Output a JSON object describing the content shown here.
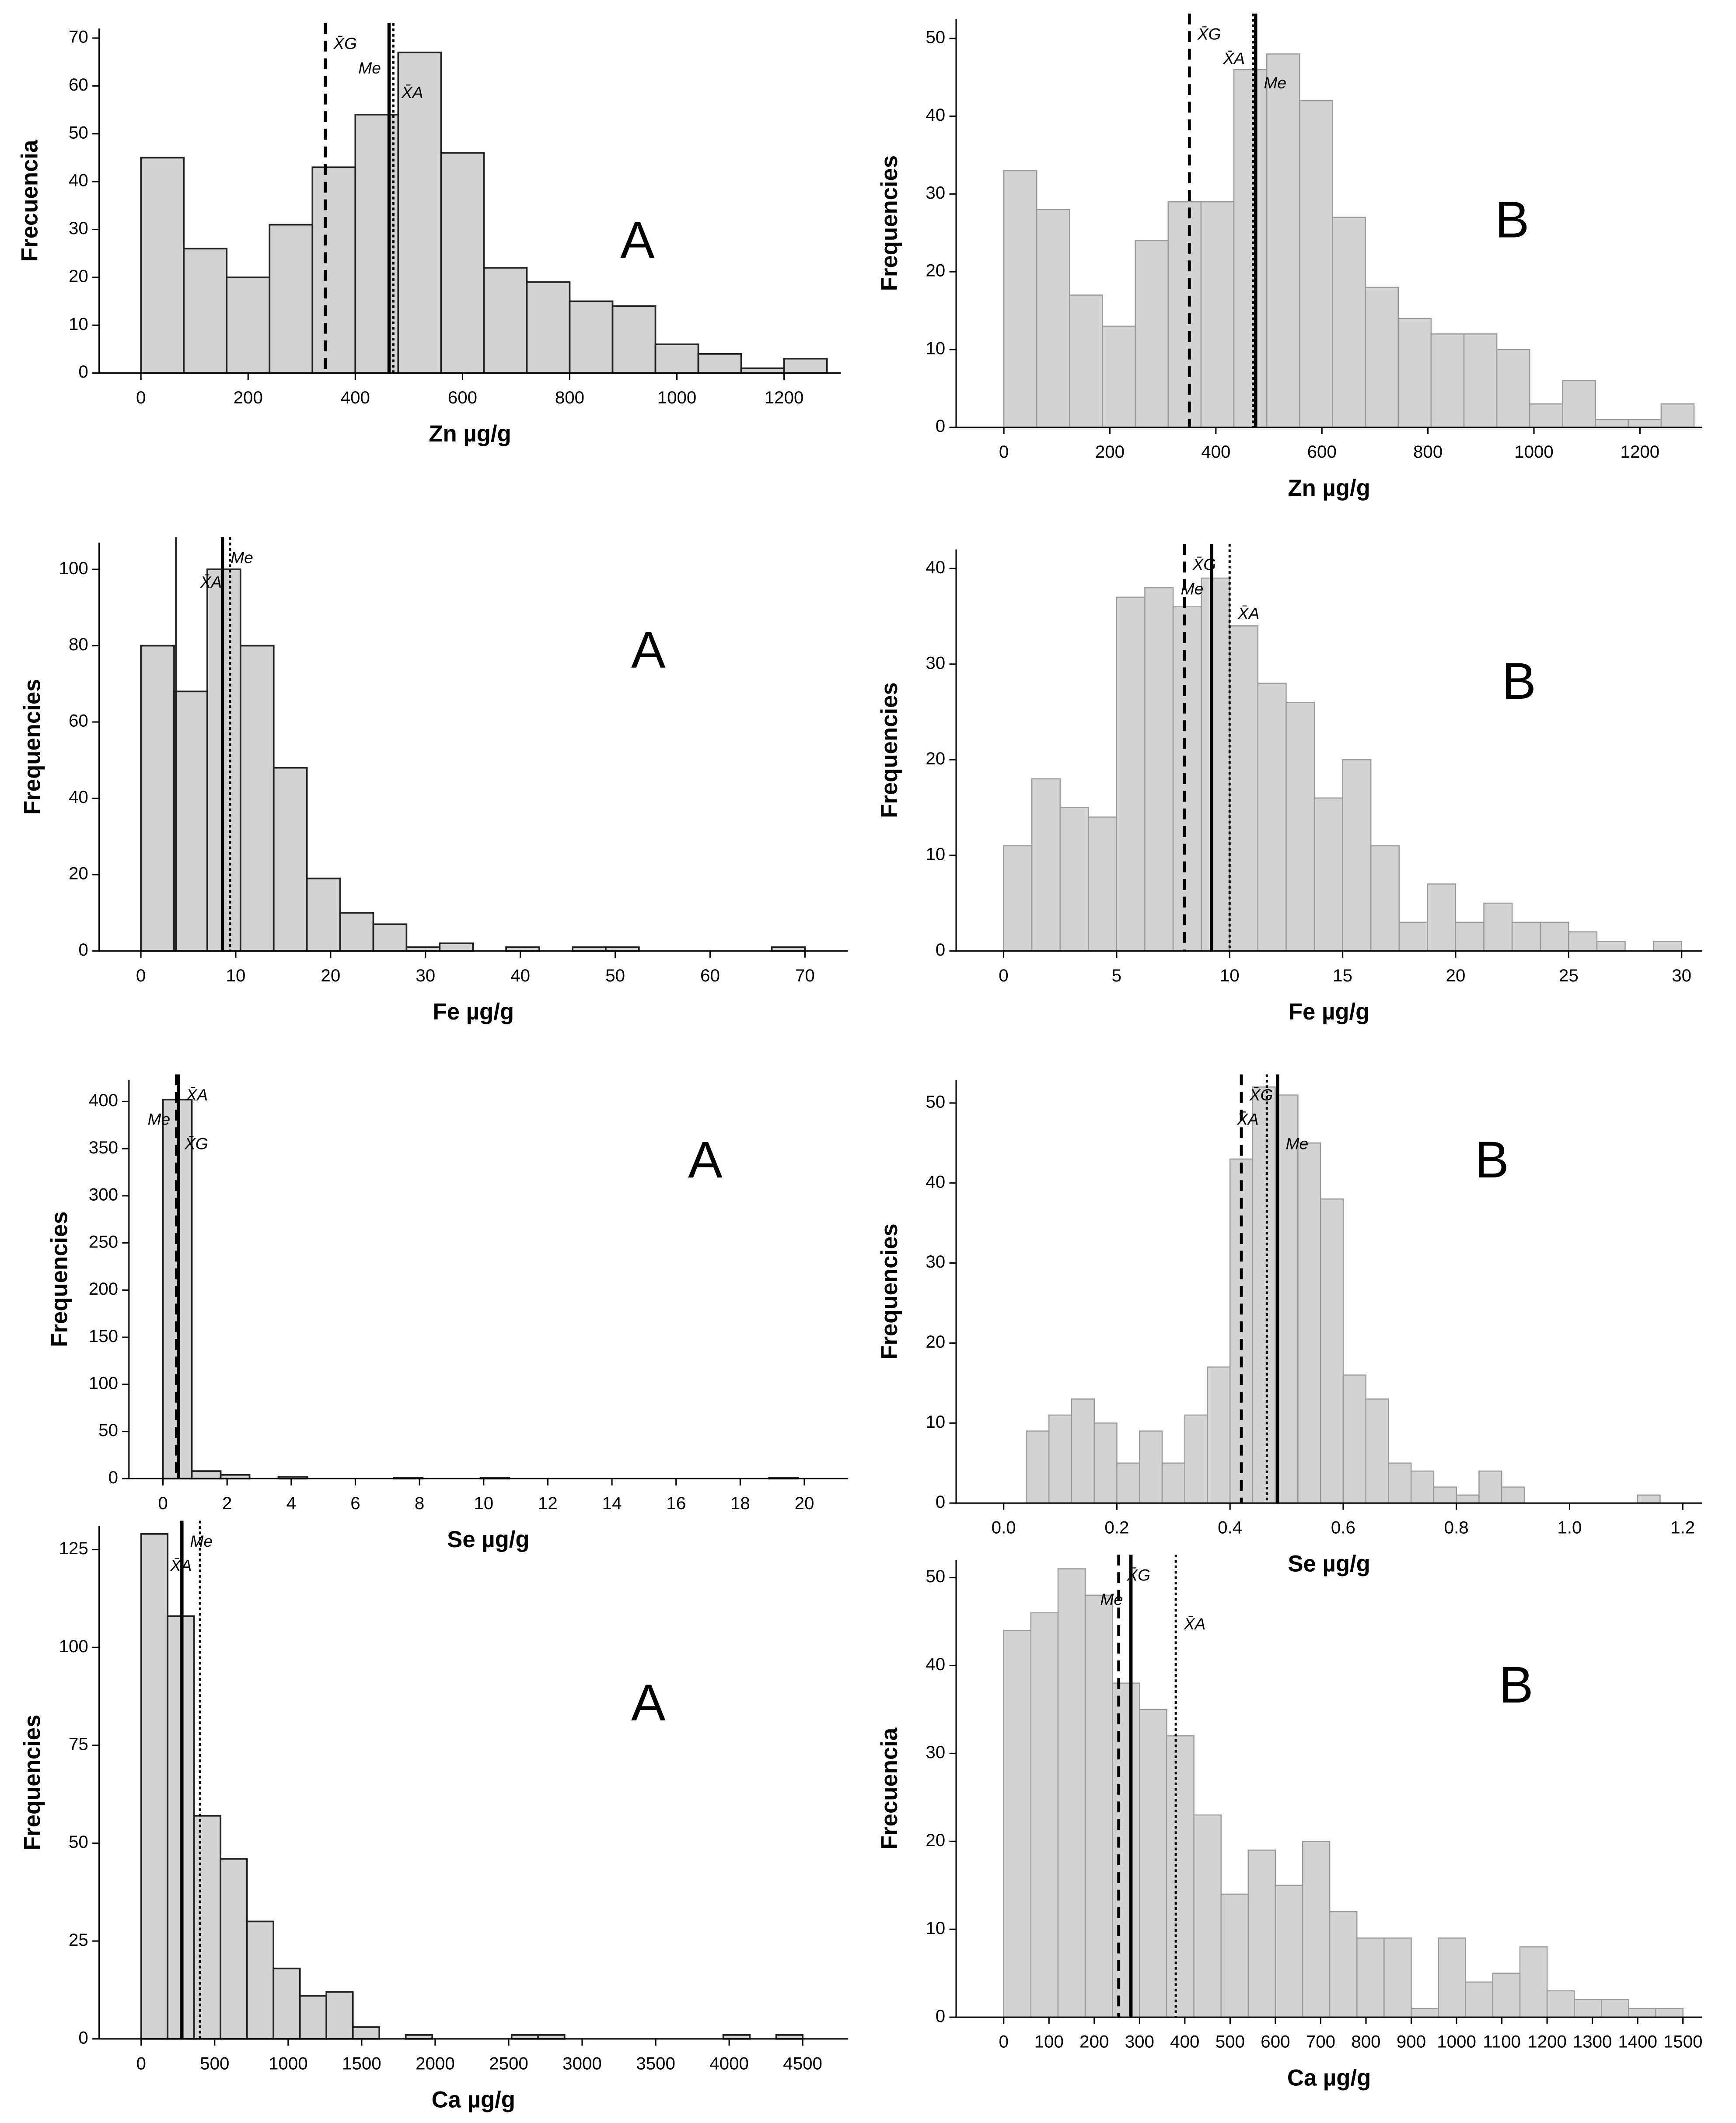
{
  "chart_data": [
    {
      "type": "histogram",
      "panel": "A",
      "xlabel": "Zn µg/g",
      "ylabel": "Frecuencia",
      "bins": [
        0,
        80,
        160,
        240,
        320,
        400,
        480,
        560,
        640,
        720,
        800,
        880,
        960,
        1040,
        1120,
        1200,
        1280
      ],
      "counts": [
        45,
        26,
        20,
        31,
        43,
        54,
        67,
        46,
        22,
        19,
        15,
        14,
        6,
        4,
        1,
        3
      ],
      "xlim": [
        -78,
        1306
      ],
      "ylim": [
        0,
        72
      ],
      "xticks": [
        0,
        200,
        400,
        600,
        800,
        1000,
        1200
      ],
      "yticks": [
        0,
        10,
        20,
        30,
        40,
        50,
        60,
        70
      ],
      "color": "#d3d3d3",
      "reference_lines": [
        {
          "label": "X̄G",
          "value": 344,
          "style": "dashed"
        },
        {
          "label": "Me",
          "value": 463,
          "style": "solid"
        },
        {
          "label": "X̄A",
          "value": 471,
          "style": "dotted"
        }
      ]
    },
    {
      "type": "histogram",
      "panel": "B",
      "xlabel": "Zn µg/g",
      "ylabel": "Frequencies",
      "bins": [
        0,
        62,
        124,
        186,
        248,
        310,
        372,
        434,
        496,
        558,
        620,
        682,
        744,
        806,
        868,
        930,
        992,
        1054,
        1116,
        1178,
        1240,
        1302
      ],
      "counts": [
        33,
        28,
        17,
        13,
        24,
        29,
        29,
        46,
        48,
        42,
        27,
        18,
        14,
        12,
        12,
        10,
        3,
        6,
        1,
        1,
        3
      ],
      "xlim": [
        -90,
        1317
      ],
      "ylim": [
        0,
        52.5
      ],
      "xticks": [
        0,
        200,
        400,
        600,
        800,
        1000,
        1200
      ],
      "yticks": [
        0,
        10,
        20,
        30,
        40,
        50
      ],
      "color": "#d3d3d3",
      "reference_lines": [
        {
          "label": "X̄G",
          "value": 350,
          "style": "dashed"
        },
        {
          "label": "X̄A",
          "value": 470,
          "style": "dotted"
        },
        {
          "label": "Me",
          "value": 475,
          "style": "solid"
        }
      ]
    },
    {
      "type": "histogram",
      "panel": "A",
      "xlabel": "Fe µg/g",
      "ylabel": "Frequencies",
      "bins": [
        0,
        3.5,
        7,
        10.5,
        14,
        17.5,
        21,
        24.5,
        28,
        31.5,
        35,
        38.5,
        42,
        45.5,
        49,
        52.5,
        56,
        59.5,
        63,
        66.5,
        70
      ],
      "counts": [
        80,
        68,
        100,
        80,
        48,
        19,
        10,
        7,
        1,
        2,
        0,
        1,
        0,
        1,
        1,
        0,
        0,
        0,
        0,
        1
      ],
      "xlim": [
        -4.4,
        74.5
      ],
      "ylim": [
        0,
        107
      ],
      "xticks": [
        0,
        10,
        20,
        30,
        40,
        50,
        60,
        70
      ],
      "yticks": [
        0,
        20,
        40,
        60,
        80,
        100
      ],
      "color": "#d3d3d3",
      "reference_lines": [
        {
          "value": 3.7,
          "style": "thin"
        },
        {
          "label": "Me",
          "value": 8.6,
          "style": "solid"
        },
        {
          "label": "X̄A",
          "value": 9.4,
          "style": "dotted"
        }
      ]
    },
    {
      "type": "histogram",
      "panel": "B",
      "xlabel": "Fe µg/g",
      "ylabel": "Frequencies",
      "bins": [
        0,
        1.25,
        2.5,
        3.75,
        5,
        6.25,
        7.5,
        8.75,
        10,
        11.25,
        12.5,
        13.75,
        15,
        16.25,
        17.5,
        18.75,
        20,
        21.25,
        22.5,
        23.75,
        25,
        26.25,
        27.5,
        28.75,
        30
      ],
      "counts": [
        11,
        18,
        15,
        14,
        37,
        38,
        36,
        39,
        34,
        28,
        26,
        16,
        20,
        11,
        3,
        7,
        3,
        5,
        3,
        3,
        2,
        1,
        0,
        1
      ],
      "xlim": [
        -2.1,
        30.9
      ],
      "ylim": [
        0,
        42
      ],
      "xticks": [
        0,
        5,
        10,
        15,
        20,
        25,
        30
      ],
      "yticks": [
        0,
        10,
        20,
        30,
        40
      ],
      "color": "#d3d3d3",
      "reference_lines": [
        {
          "label": "X̄G",
          "value": 8.0,
          "style": "dashed"
        },
        {
          "label": "Me",
          "value": 9.2,
          "style": "solid"
        },
        {
          "label": "X̄A",
          "value": 10.0,
          "style": "dotted"
        }
      ]
    },
    {
      "type": "histogram",
      "panel": "A",
      "xlabel": "Se µg/g",
      "ylabel": "Frequencies",
      "bins": [
        0,
        0.9,
        1.8,
        2.7,
        3.6,
        4.5,
        5.4,
        6.3,
        7.2,
        8.1,
        9,
        9.9,
        10.8,
        11.7,
        12.6,
        13.5,
        14.4,
        15.3,
        16.2,
        17.1,
        18,
        18.9,
        19.8,
        20.7
      ],
      "counts": [
        402,
        8,
        4,
        0,
        2,
        0,
        0,
        0,
        1,
        0,
        0,
        1,
        0,
        0,
        0,
        0,
        0,
        0,
        0,
        0,
        0,
        1,
        0
      ],
      "xlim": [
        -1.06,
        21.35
      ],
      "ylim": [
        0,
        423
      ],
      "xticks": [
        0,
        2,
        4,
        6,
        8,
        10,
        12,
        14,
        16,
        18,
        20
      ],
      "yticks": [
        0,
        50,
        100,
        150,
        200,
        250,
        300,
        350,
        400
      ],
      "color": "#d3d3d3",
      "reference_lines": [
        {
          "label": "X̄A",
          "value": 0.47,
          "style": "dashed"
        },
        {
          "label": "Me",
          "value": 0.48,
          "style": "solid"
        },
        {
          "label": "X̄G",
          "value": 0.42,
          "style": "dashed"
        }
      ]
    },
    {
      "type": "histogram",
      "panel": "B",
      "xlabel": "Se µg/g",
      "ylabel": "Frequencies",
      "bins": [
        0.04,
        0.08,
        0.12,
        0.16,
        0.2,
        0.24,
        0.28,
        0.32,
        0.36,
        0.4,
        0.44,
        0.48,
        0.52,
        0.56,
        0.6,
        0.64,
        0.68,
        0.72,
        0.76,
        0.8,
        0.84,
        0.88,
        0.92,
        0.96,
        1,
        1.04,
        1.08,
        1.12,
        1.16
      ],
      "counts": [
        9,
        11,
        13,
        10,
        5,
        9,
        5,
        11,
        17,
        43,
        52,
        51,
        45,
        38,
        16,
        13,
        5,
        4,
        2,
        1,
        4,
        2,
        0,
        0,
        0,
        0,
        0,
        1
      ],
      "xlim": [
        -0.084,
        1.234
      ],
      "ylim": [
        0,
        52.9
      ],
      "xticks": [
        {
          "value": 0,
          "label": "0.0"
        },
        0.2,
        0.4,
        0.6,
        0.8,
        {
          "value": 1,
          "label": "1.0"
        },
        1.2
      ],
      "yticks": [
        0,
        10,
        20,
        30,
        40,
        50
      ],
      "color": "#d3d3d3",
      "reference_lines": [
        {
          "label": "X̄G",
          "value": 0.42,
          "style": "dashed"
        },
        {
          "label": "X̄A",
          "value": 0.465,
          "style": "dotted"
        },
        {
          "label": "Me",
          "value": 0.484,
          "style": "solid"
        }
      ]
    },
    {
      "type": "histogram",
      "panel": "A",
      "xlabel": "Ca µg/g",
      "ylabel": "Frequencies",
      "bins": [
        0,
        180,
        360,
        540,
        720,
        900,
        1080,
        1260,
        1440,
        1620,
        1800,
        1980,
        2160,
        2340,
        2520,
        2700,
        2880,
        3060,
        3240,
        3420,
        3600,
        3780,
        3960,
        4140,
        4320,
        4500
      ],
      "counts": [
        129,
        108,
        57,
        46,
        30,
        18,
        11,
        12,
        3,
        0,
        1,
        0,
        0,
        0,
        1,
        1,
        0,
        0,
        0,
        0,
        0,
        0,
        1,
        0,
        1
      ],
      "xlim": [
        -286,
        4806
      ],
      "ylim": [
        0,
        131
      ],
      "xticks": [
        0,
        500,
        1000,
        1500,
        2000,
        2500,
        3000,
        3500,
        4000,
        4500
      ],
      "yticks": [
        0,
        25,
        50,
        75,
        100,
        125
      ],
      "color": "#d3d3d3",
      "reference_lines": [
        {
          "label": "Me",
          "value": 277,
          "style": "solid"
        },
        {
          "label": "X̄A",
          "value": 400,
          "style": "dotted"
        }
      ]
    },
    {
      "type": "histogram",
      "panel": "B",
      "xlabel": "Ca µg/g",
      "ylabel": "Frecuencia",
      "bins": [
        0,
        60,
        120,
        180,
        240,
        300,
        360,
        420,
        480,
        540,
        600,
        660,
        720,
        780,
        840,
        900,
        960,
        1020,
        1080,
        1140,
        1200,
        1260,
        1320,
        1380,
        1440,
        1500
      ],
      "counts": [
        44,
        46,
        51,
        48,
        38,
        35,
        32,
        23,
        14,
        19,
        15,
        20,
        12,
        9,
        9,
        1,
        9,
        4,
        5,
        8,
        3,
        2,
        2,
        1,
        1
      ],
      "xlim": [
        -105,
        1542
      ],
      "ylim": [
        0,
        52
      ],
      "xticks": [
        0,
        100,
        200,
        300,
        400,
        500,
        600,
        700,
        800,
        900,
        1000,
        1100,
        1200,
        1300,
        1400,
        1500
      ],
      "yticks": [
        0,
        10,
        20,
        30,
        40,
        50
      ],
      "color": "#d3d3d3",
      "reference_lines": [
        {
          "label": "X̄G",
          "value": 254,
          "style": "dashed"
        },
        {
          "label": "Me",
          "value": 281,
          "style": "solid"
        },
        {
          "label": "X̄A",
          "value": 380,
          "style": "dotted"
        }
      ]
    }
  ]
}
